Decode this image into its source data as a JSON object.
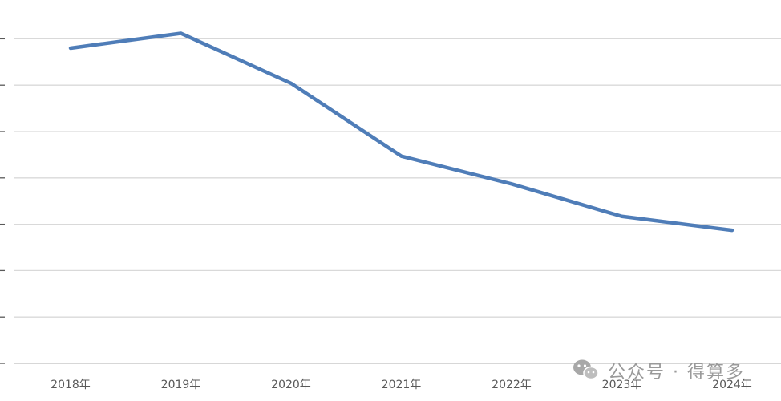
{
  "chart_data": {
    "type": "line",
    "title": "",
    "xlabel": "",
    "ylabel": "",
    "categories": [
      "2018年",
      "2019年",
      "2020年",
      "2021年",
      "2022年",
      "2023年",
      "2024年"
    ],
    "series": [
      {
        "values": [
          6.8,
          7.12,
          6.04,
          4.47,
          3.87,
          3.17,
          2.87
        ]
      }
    ],
    "ylim": [
      0,
      7
    ],
    "y_tick_step": 1,
    "y_tick_labels_visible": false,
    "grid": true,
    "legend": "none",
    "colors": {
      "line": "#4f7db8",
      "grid": "#d9d9d9",
      "axis": "#bfbfbf"
    }
  },
  "watermark": {
    "icon": "wechat-icon",
    "text": "公众号 · 得算多"
  }
}
